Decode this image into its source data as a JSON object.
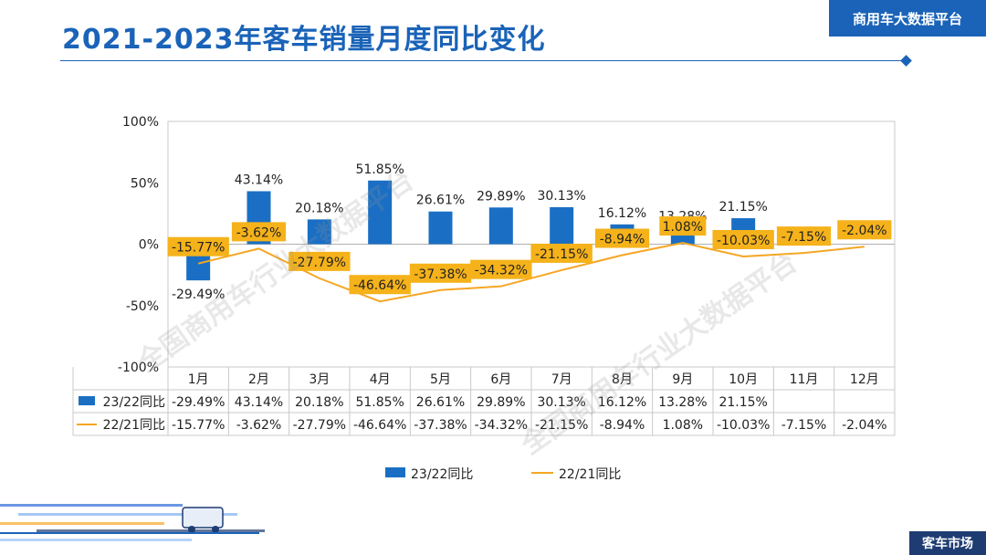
{
  "header": {
    "title": "2021-2023年客车销量月度同比变化",
    "brand": "商用车大数据平台"
  },
  "footer": {
    "tag": "客车市场"
  },
  "watermarks": [
    "全国商用车行业大数据平台",
    "全国商用车行业大数据平台"
  ],
  "colors": {
    "bar": "#1a6fc4",
    "line": "#f5a623",
    "label_bg": "#f5b21a",
    "title": "#1a63b8"
  },
  "chart_data": {
    "type": "bar",
    "categories": [
      "1月",
      "2月",
      "3月",
      "4月",
      "5月",
      "6月",
      "7月",
      "8月",
      "9月",
      "10月",
      "11月",
      "12月"
    ],
    "series": [
      {
        "name": "23/22同比",
        "type": "bar",
        "values": [
          -29.49,
          43.14,
          20.18,
          51.85,
          26.61,
          29.89,
          30.13,
          16.12,
          13.28,
          21.15,
          null,
          null
        ],
        "labels": [
          "-29.49%",
          "43.14%",
          "20.18%",
          "51.85%",
          "26.61%",
          "29.89%",
          "30.13%",
          "16.12%",
          "13.28%",
          "21.15%",
          "",
          ""
        ]
      },
      {
        "name": "22/21同比",
        "type": "line",
        "values": [
          -15.77,
          -3.62,
          -27.79,
          -46.64,
          -37.38,
          -34.32,
          -21.15,
          -8.94,
          1.08,
          -10.03,
          -7.15,
          -2.04
        ],
        "labels": [
          "-15.77%",
          "-3.62%",
          "-27.79%",
          "-46.64%",
          "-37.38%",
          "-34.32%",
          "-21.15%",
          "-8.94%",
          "1.08%",
          "-10.03%",
          "-7.15%",
          "-2.04%"
        ]
      }
    ],
    "ylim": [
      -100,
      100
    ],
    "yticks": [
      100,
      50,
      0,
      -50,
      -100
    ],
    "ytick_labels": [
      "100%",
      "50%",
      "0%",
      "-50%",
      "-100%"
    ],
    "legend": "bottom",
    "data_table": true
  }
}
